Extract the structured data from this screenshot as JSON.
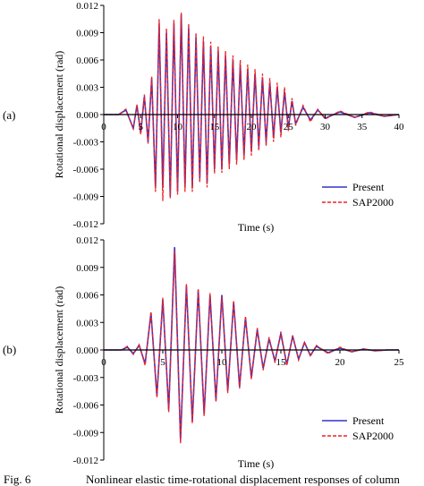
{
  "caption": {
    "label": "Fig. 6",
    "text": "Nonlinear elastic time-rotational displacement responses of column"
  },
  "chart_data": [
    {
      "type": "line",
      "panel_label": "(a)",
      "xlabel": "Time (s)",
      "ylabel": "Rotational displacement (rad)",
      "xlim": [
        0,
        40
      ],
      "ylim": [
        -0.012,
        0.012
      ],
      "xticks": [
        "0",
        "5",
        "10",
        "15",
        "20",
        "25",
        "30",
        "35",
        "40"
      ],
      "yticks": [
        "0.012",
        "0.009",
        "0.006",
        "0.003",
        "0.000",
        "-0.003",
        "-0.006",
        "-0.009",
        "-0.012"
      ],
      "grid": false,
      "legend_position": "bottom-right",
      "series": [
        {
          "name": "Present",
          "color": "#3333cc",
          "style": "solid",
          "x": [
            0,
            2,
            3,
            4,
            4.5,
            5,
            5.5,
            6,
            6.5,
            7,
            7.5,
            8,
            8.5,
            9,
            9.5,
            10,
            10.5,
            11,
            11.5,
            12,
            12.5,
            13,
            13.5,
            14,
            14.5,
            15,
            15.5,
            16,
            16.5,
            17,
            17.5,
            18,
            18.5,
            19,
            19.5,
            20,
            20.5,
            21,
            21.5,
            22,
            22.5,
            23,
            23.5,
            24,
            24.5,
            25,
            25.5,
            26,
            27,
            28,
            29,
            30,
            32,
            34,
            36,
            38,
            40
          ],
          "y": [
            0,
            0,
            0.0005,
            -0.0015,
            0.001,
            -0.002,
            0.002,
            -0.003,
            0.004,
            -0.008,
            0.01,
            -0.008,
            0.009,
            -0.009,
            0.01,
            -0.0085,
            0.011,
            -0.008,
            0.0095,
            -0.008,
            0.0085,
            -0.007,
            0.008,
            -0.0075,
            0.0075,
            -0.006,
            0.007,
            -0.006,
            0.0065,
            -0.0055,
            0.006,
            -0.005,
            0.0055,
            -0.0045,
            0.005,
            -0.004,
            0.0045,
            -0.0035,
            0.004,
            -0.003,
            0.0035,
            -0.0025,
            0.003,
            -0.002,
            0.0025,
            -0.0015,
            0.0015,
            -0.001,
            0.0008,
            -0.0006,
            0.0005,
            -0.0004,
            0.0003,
            -0.0003,
            0.0002,
            -0.0002,
            0
          ]
        },
        {
          "name": "SAP2000",
          "color": "#ee2222",
          "style": "dashed",
          "x": [
            0,
            2,
            3,
            4,
            4.5,
            5,
            5.5,
            6,
            6.5,
            7,
            7.5,
            8,
            8.5,
            9,
            9.5,
            10,
            10.5,
            11,
            11.5,
            12,
            12.5,
            13,
            13.5,
            14,
            14.5,
            15,
            15.5,
            16,
            16.5,
            17,
            17.5,
            18,
            18.5,
            19,
            19.5,
            20,
            20.5,
            21,
            21.5,
            22,
            22.5,
            23,
            23.5,
            24,
            24.5,
            25,
            25.5,
            26,
            27,
            28,
            29,
            30,
            32,
            34,
            36,
            38,
            40
          ],
          "y": [
            0,
            0,
            0.0006,
            -0.0016,
            0.0011,
            -0.0022,
            0.0022,
            -0.0032,
            0.0042,
            -0.0085,
            0.0105,
            -0.0095,
            0.0095,
            -0.0092,
            0.0104,
            -0.0088,
            0.0112,
            -0.0085,
            0.01,
            -0.0085,
            0.009,
            -0.0075,
            0.0086,
            -0.008,
            0.008,
            -0.0065,
            0.0075,
            -0.0064,
            0.007,
            -0.006,
            0.0065,
            -0.0055,
            0.006,
            -0.005,
            0.0055,
            -0.0045,
            0.005,
            -0.004,
            0.0045,
            -0.0035,
            0.004,
            -0.003,
            0.0035,
            -0.0025,
            0.003,
            -0.0018,
            0.0018,
            -0.0012,
            0.001,
            -0.0008,
            0.0006,
            -0.0005,
            0.0004,
            -0.0003,
            0.0003,
            -0.0002,
            0
          ]
        }
      ]
    },
    {
      "type": "line",
      "panel_label": "(b)",
      "xlabel": "Time (s)",
      "ylabel": "Rotational displacement (rad)",
      "xlim": [
        0,
        25
      ],
      "ylim": [
        -0.012,
        0.012
      ],
      "xticks": [
        "0",
        "5",
        "10",
        "15",
        "20",
        "25"
      ],
      "yticks": [
        "0.012",
        "0.009",
        "0.006",
        "0.003",
        "0.000",
        "-0.003",
        "-0.006",
        "-0.009",
        "-0.012"
      ],
      "grid": false,
      "legend_position": "bottom-right",
      "series": [
        {
          "name": "Present",
          "color": "#3333cc",
          "style": "solid",
          "x": [
            0,
            1.5,
            2,
            2.5,
            3,
            3.5,
            4,
            4.5,
            5,
            5.5,
            6,
            6.5,
            7,
            7.5,
            8,
            8.5,
            9,
            9.5,
            10,
            10.5,
            11,
            11.5,
            12,
            12.5,
            13,
            13.5,
            14,
            14.5,
            15,
            15.5,
            16,
            16.5,
            17,
            17.5,
            18,
            19,
            20,
            21,
            22,
            23,
            24,
            25
          ],
          "y": [
            0,
            0,
            0.0003,
            -0.0004,
            0.0005,
            -0.0015,
            0.004,
            -0.005,
            0.0055,
            -0.0065,
            0.0112,
            -0.0098,
            0.007,
            -0.0078,
            0.0065,
            -0.007,
            0.006,
            -0.0055,
            0.006,
            -0.0045,
            0.0052,
            -0.004,
            0.0035,
            -0.003,
            0.0022,
            -0.002,
            0.0012,
            -0.0012,
            0.0018,
            -0.0016,
            0.0015,
            -0.001,
            0.0008,
            -0.0006,
            0.0004,
            -0.0003,
            0.0002,
            -0.0002,
            0.0001,
            -0.0001,
            0,
            0
          ]
        },
        {
          "name": "SAP2000",
          "color": "#ee2222",
          "style": "dashed",
          "x": [
            0,
            1.5,
            2,
            2.5,
            3,
            3.5,
            4,
            4.5,
            5,
            5.5,
            6,
            6.5,
            7,
            7.5,
            8,
            8.5,
            9,
            9.5,
            10,
            10.5,
            11,
            11.5,
            12,
            12.5,
            13,
            13.5,
            14,
            14.5,
            15,
            15.5,
            16,
            16.5,
            17,
            17.5,
            18,
            19,
            20,
            21,
            22,
            23,
            24,
            25
          ],
          "y": [
            0,
            0,
            0.0004,
            -0.0005,
            0.0006,
            -0.0017,
            0.0042,
            -0.0052,
            0.0057,
            -0.0068,
            0.0108,
            -0.0102,
            0.0072,
            -0.008,
            0.0067,
            -0.0072,
            0.0062,
            -0.0057,
            0.0058,
            -0.0047,
            0.0054,
            -0.0042,
            0.0037,
            -0.0032,
            0.0024,
            -0.0022,
            0.0014,
            -0.0014,
            0.002,
            -0.0017,
            0.0016,
            -0.0011,
            0.0009,
            -0.0007,
            0.0005,
            -0.0004,
            0.0003,
            -0.0002,
            0.0001,
            -0.0001,
            0,
            0
          ]
        }
      ]
    }
  ]
}
